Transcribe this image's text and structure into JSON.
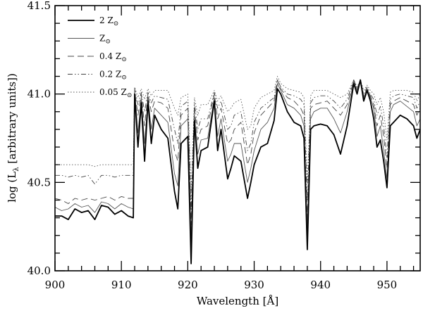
{
  "chart_data": {
    "type": "line",
    "title": "",
    "xlabel": "Wavelength [Å]",
    "ylabel": "log (L_λ [arbitrary units])",
    "xlim": [
      900,
      955
    ],
    "ylim": [
      40.0,
      41.5
    ],
    "xticks": [
      900,
      910,
      920,
      930,
      940,
      950
    ],
    "xtick_labels": [
      "900",
      "910",
      "920",
      "930",
      "940",
      "950"
    ],
    "yticks": [
      40.0,
      40.5,
      41.0,
      41.5
    ],
    "ytick_labels": [
      "40.0",
      "40.5",
      "41.0",
      "41.5"
    ],
    "grid": false,
    "legend_position": "upper left",
    "x": [
      900,
      901,
      902,
      903,
      904,
      905,
      906,
      907,
      908,
      909,
      910,
      911,
      911.8,
      912,
      912.5,
      913,
      913.5,
      914,
      914.5,
      915,
      916,
      917,
      918,
      918.5,
      919,
      920,
      920.5,
      921,
      921.5,
      922,
      923,
      924,
      924.5,
      925,
      926,
      926.5,
      927,
      928,
      929,
      929.5,
      930,
      931,
      932,
      933,
      933.5,
      934,
      935,
      936,
      937,
      937.5,
      938,
      938.5,
      939,
      940,
      941,
      942,
      943,
      944,
      945,
      945.5,
      946,
      946.5,
      947,
      947.5,
      948,
      948.5,
      949,
      949.5,
      950,
      950.5,
      951,
      952,
      953,
      954,
      954.5,
      955
    ],
    "series": [
      {
        "name": "2 Z⊙",
        "style": "solid-thick",
        "values": [
          40.31,
          40.31,
          40.29,
          40.35,
          40.33,
          40.34,
          40.29,
          40.37,
          40.36,
          40.32,
          40.34,
          40.31,
          40.3,
          41.0,
          40.7,
          40.95,
          40.62,
          40.96,
          40.72,
          40.88,
          40.8,
          40.75,
          40.45,
          40.35,
          40.72,
          40.76,
          40.04,
          40.85,
          40.58,
          40.68,
          40.7,
          40.96,
          40.68,
          40.8,
          40.52,
          40.58,
          40.65,
          40.62,
          40.41,
          40.5,
          40.6,
          40.7,
          40.72,
          40.85,
          41.03,
          41.0,
          40.9,
          40.84,
          40.82,
          40.75,
          40.12,
          40.8,
          40.82,
          40.83,
          40.82,
          40.77,
          40.66,
          40.82,
          41.06,
          41.0,
          41.08,
          40.96,
          41.02,
          40.96,
          40.86,
          40.7,
          40.74,
          40.62,
          40.47,
          40.82,
          40.84,
          40.88,
          40.86,
          40.82,
          40.75,
          40.8
        ]
      },
      {
        "name": "Z⊙",
        "style": "solid-thin",
        "values": [
          40.36,
          40.34,
          40.35,
          40.38,
          40.36,
          40.37,
          40.33,
          40.39,
          40.38,
          40.35,
          40.38,
          40.36,
          40.35,
          41.02,
          40.78,
          40.98,
          40.72,
          40.98,
          40.8,
          40.92,
          40.88,
          40.84,
          40.55,
          40.48,
          40.82,
          40.86,
          40.18,
          40.88,
          40.66,
          40.74,
          40.75,
          40.98,
          40.76,
          40.86,
          40.62,
          40.66,
          40.72,
          40.72,
          40.5,
          40.58,
          40.68,
          40.8,
          40.84,
          40.92,
          41.06,
          41.02,
          40.94,
          40.92,
          40.88,
          40.82,
          40.24,
          40.86,
          40.9,
          40.92,
          40.92,
          40.86,
          40.78,
          40.9,
          41.07,
          41.02,
          41.08,
          40.98,
          41.03,
          40.98,
          40.92,
          40.76,
          40.82,
          40.68,
          40.52,
          40.9,
          40.94,
          40.96,
          40.93,
          40.9,
          40.82,
          40.86
        ]
      },
      {
        "name": "0.4 Z⊙",
        "style": "dashed",
        "values": [
          40.41,
          40.4,
          40.38,
          40.41,
          40.4,
          40.41,
          40.4,
          40.41,
          40.42,
          40.4,
          40.42,
          40.41,
          40.41,
          41.02,
          40.88,
          41.0,
          40.82,
          41.0,
          40.9,
          40.96,
          40.95,
          40.92,
          40.68,
          40.62,
          40.88,
          40.92,
          40.26,
          40.92,
          40.74,
          40.8,
          40.82,
          41.0,
          40.86,
          40.92,
          40.72,
          40.74,
          40.8,
          40.84,
          40.6,
          40.66,
          40.78,
          40.88,
          40.92,
          40.96,
          41.08,
          41.03,
          40.98,
          40.96,
          40.92,
          40.88,
          40.3,
          40.92,
          40.94,
          40.95,
          40.96,
          40.92,
          40.88,
          40.94,
          41.08,
          41.03,
          41.08,
          40.99,
          41.03,
          40.99,
          40.94,
          40.82,
          40.88,
          40.76,
          40.58,
          40.94,
          40.96,
          40.98,
          40.96,
          40.94,
          40.88,
          40.92
        ]
      },
      {
        "name": "0.2 Z⊙",
        "style": "dash-dot",
        "values": [
          40.54,
          40.54,
          40.53,
          40.54,
          40.53,
          40.54,
          40.49,
          40.54,
          40.54,
          40.53,
          40.54,
          40.54,
          40.54,
          41.03,
          40.94,
          41.01,
          40.9,
          41.01,
          40.95,
          40.99,
          40.98,
          40.97,
          40.8,
          40.72,
          40.93,
          40.96,
          40.34,
          40.95,
          40.8,
          40.86,
          40.86,
          41.01,
          40.92,
          40.96,
          40.8,
          40.82,
          40.88,
          40.9,
          40.68,
          40.72,
          40.84,
          40.92,
          40.95,
          40.98,
          41.08,
          41.04,
          41.0,
          40.99,
          40.97,
          40.94,
          40.4,
          40.95,
          40.98,
          40.99,
          40.99,
          40.96,
          40.92,
          40.97,
          41.08,
          41.03,
          41.08,
          41.0,
          41.04,
          41.0,
          40.97,
          40.88,
          40.93,
          40.82,
          40.64,
          40.97,
          40.99,
          41.0,
          40.99,
          40.98,
          40.92,
          40.96
        ]
      },
      {
        "name": "0.05 Z⊙",
        "style": "dotted",
        "values": [
          40.6,
          40.6,
          40.6,
          40.6,
          40.6,
          40.6,
          40.59,
          40.6,
          40.6,
          40.6,
          40.6,
          40.6,
          40.6,
          41.04,
          40.98,
          41.03,
          40.97,
          41.03,
          40.99,
          41.02,
          41.02,
          41.02,
          40.92,
          40.88,
          40.98,
          41.0,
          40.45,
          40.98,
          40.88,
          40.94,
          40.94,
          41.02,
          40.96,
          40.99,
          40.9,
          40.92,
          40.95,
          40.97,
          40.8,
          40.82,
          40.92,
          40.98,
          41.0,
          41.02,
          41.1,
          41.06,
          41.03,
          41.02,
          41.01,
          40.98,
          40.5,
          40.99,
          41.02,
          41.02,
          41.02,
          41.0,
          40.98,
          41.0,
          41.08,
          41.04,
          41.08,
          41.02,
          41.05,
          41.02,
          41.0,
          40.94,
          40.98,
          40.9,
          40.74,
          41.01,
          41.02,
          41.02,
          41.02,
          41.01,
          40.96,
          41.0
        ]
      }
    ]
  },
  "legend": {
    "items": [
      {
        "label": "2 Z⊙"
      },
      {
        "label": "Z⊙"
      },
      {
        "label": "0.4 Z⊙"
      },
      {
        "label": "0.2 Z⊙"
      },
      {
        "label": "0.05 Z⊙"
      }
    ]
  },
  "axes": {
    "xlabel": "Wavelength [Å]",
    "ylabel": "log (L_λ [arbitrary units])"
  }
}
